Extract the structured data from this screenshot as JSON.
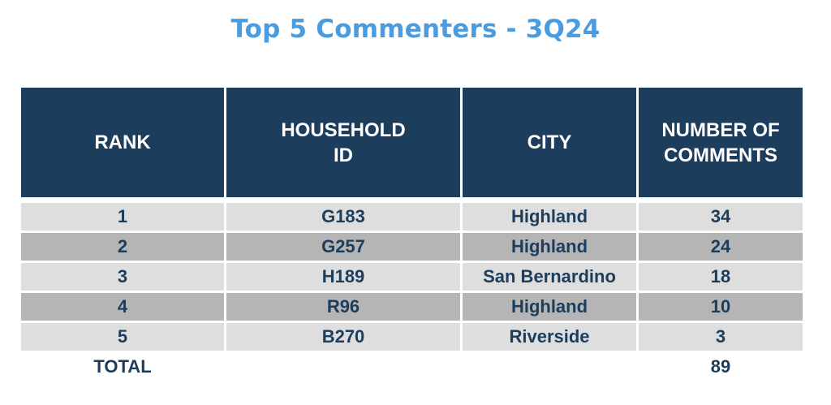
{
  "title": "Top 5 Commenters - 3Q24",
  "table": {
    "headers": {
      "rank": "RANK",
      "household_id_line1": "HOUSEHOLD",
      "household_id_line2": "ID",
      "city": "CITY",
      "comments_line1": "NUMBER OF",
      "comments_line2": "COMMENTS"
    },
    "rows": [
      {
        "rank": "1",
        "household_id": "G183",
        "city": "Highland",
        "comments": "34"
      },
      {
        "rank": "2",
        "household_id": "G257",
        "city": "Highland",
        "comments": "24"
      },
      {
        "rank": "3",
        "household_id": "H189",
        "city": "San Bernardino",
        "comments": "18"
      },
      {
        "rank": "4",
        "household_id": "R96",
        "city": "Highland",
        "comments": "10"
      },
      {
        "rank": "5",
        "household_id": "B270",
        "city": "Riverside",
        "comments": "3"
      }
    ],
    "total": {
      "label": "TOTAL",
      "comments": "89"
    }
  },
  "colors": {
    "title": "#4a9ce0",
    "header_bg": "#1c3d5c",
    "row_light": "#dedede",
    "row_dark": "#b5b5b5"
  }
}
